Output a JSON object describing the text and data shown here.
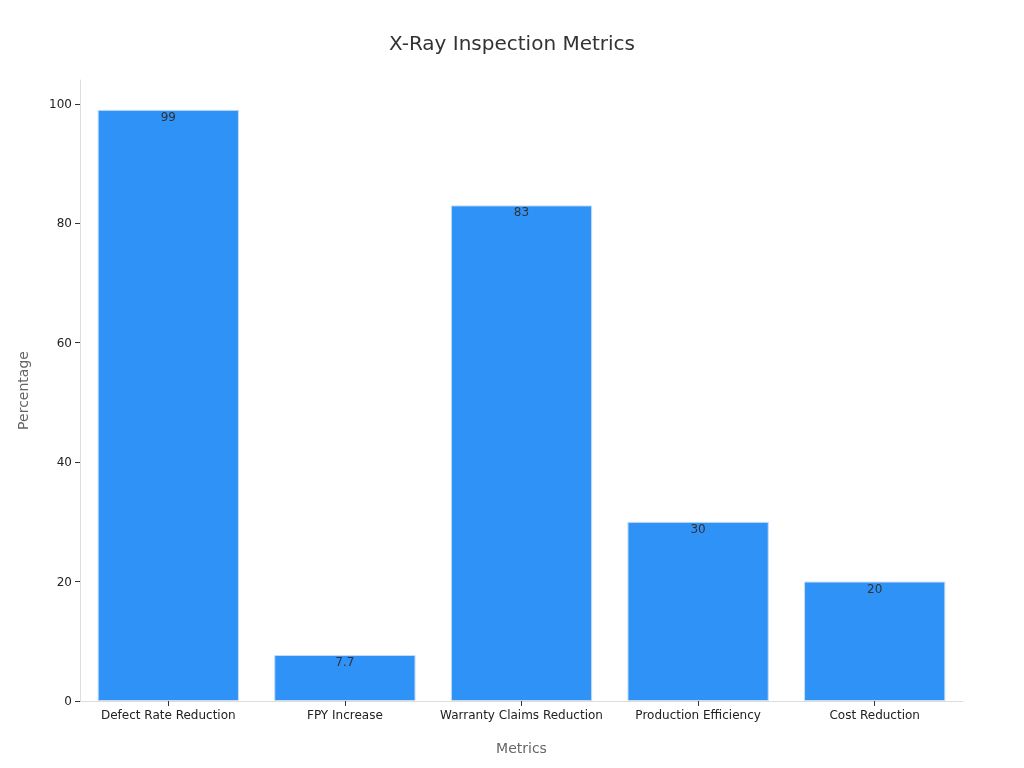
{
  "chart_data": {
    "type": "bar",
    "title": "X-Ray Inspection Metrics",
    "xlabel": "Metrics",
    "ylabel": "Percentage",
    "categories": [
      "Defect Rate Reduction",
      "FPY Increase",
      "Warranty Claims Reduction",
      "Production Efficiency",
      "Cost Reduction"
    ],
    "values": [
      99,
      7.7,
      83,
      30,
      20
    ],
    "color": "#2f92f7",
    "ylim": [
      0,
      104
    ],
    "yticks": [
      0,
      20,
      40,
      60,
      80,
      100
    ],
    "grid": false,
    "data_labels": true
  }
}
